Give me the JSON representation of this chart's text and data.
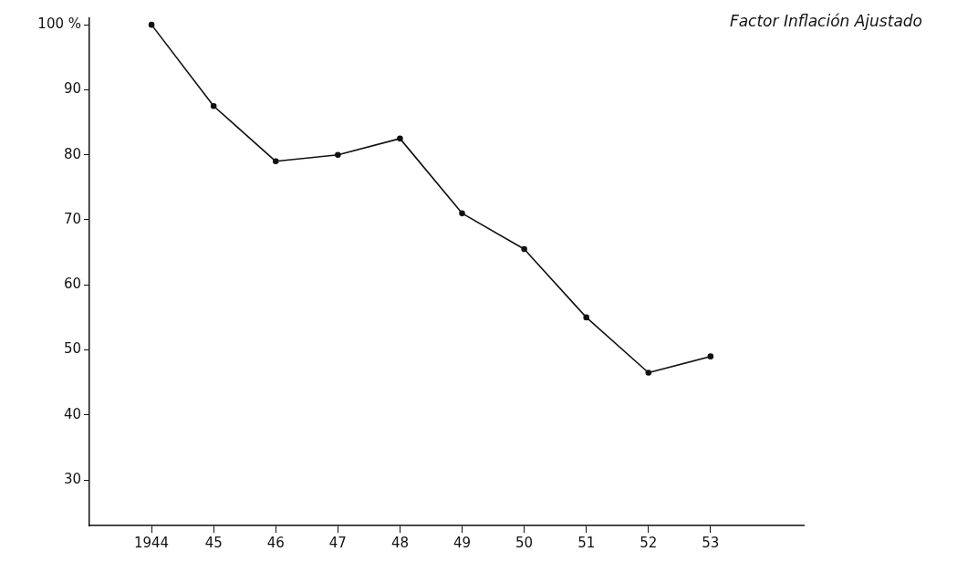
{
  "chart_data": {
    "type": "line",
    "title": "Factor Inflación Ajustado",
    "x": [
      1944,
      1945,
      1946,
      1947,
      1948,
      1949,
      1950,
      1951,
      1952,
      1953
    ],
    "series": [
      {
        "color": "#111111",
        "values": [
          100,
          87.5,
          79,
          80,
          82.5,
          71,
          65.5,
          55,
          46.5,
          49
        ]
      }
    ],
    "xlim": [
      1943,
      1954.5
    ],
    "xticks": [
      {
        "value": 1944,
        "label": "1944"
      },
      {
        "value": 1945,
        "label": "45"
      },
      {
        "value": 1946,
        "label": "46"
      },
      {
        "value": 1947,
        "label": "47"
      },
      {
        "value": 1948,
        "label": "48"
      },
      {
        "value": 1949,
        "label": "49"
      },
      {
        "value": 1950,
        "label": "50"
      },
      {
        "value": 1951,
        "label": "51"
      },
      {
        "value": 1952,
        "label": "52"
      },
      {
        "value": 1953,
        "label": "53"
      }
    ],
    "ylim": [
      23,
      101
    ],
    "yticks": [
      30,
      40,
      50,
      60,
      70,
      80,
      90,
      {
        "value": 100,
        "label": "100 %"
      }
    ],
    "grid": false,
    "marker": "circle",
    "line_style": "solid",
    "legend": false
  }
}
